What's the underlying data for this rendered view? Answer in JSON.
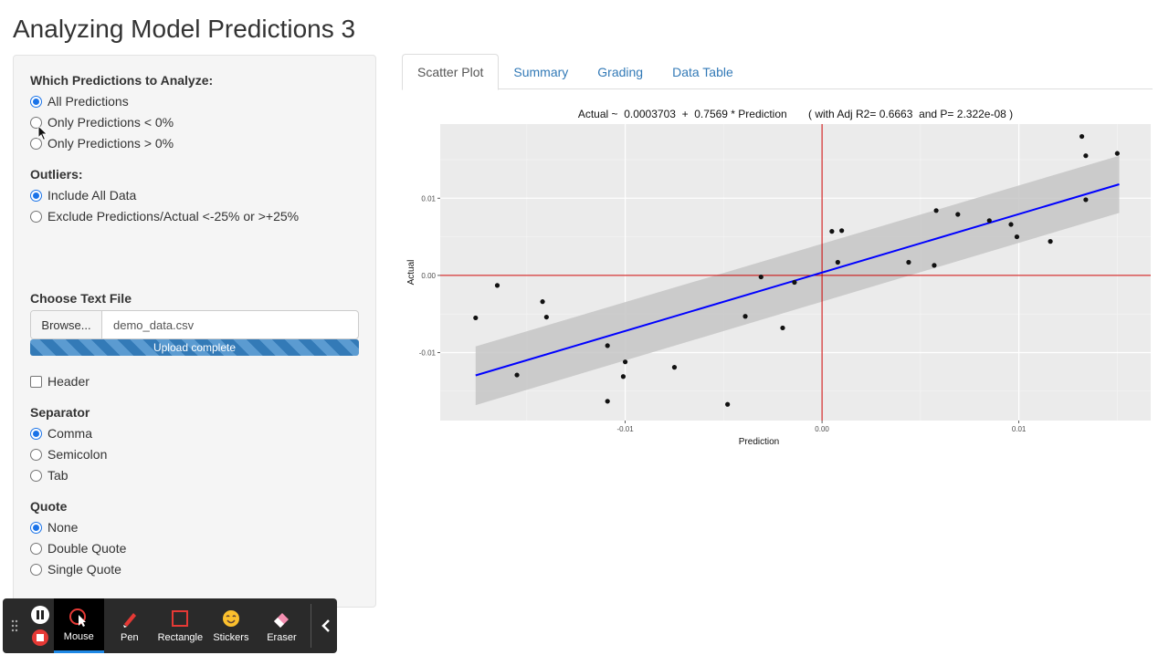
{
  "page": {
    "title": "Analyzing Model Predictions 3"
  },
  "sidebar": {
    "predictions": {
      "label": "Which Predictions to Analyze:",
      "options": [
        "All Predictions",
        "Only Predictions < 0%",
        "Only Predictions > 0%"
      ],
      "selected": "All Predictions"
    },
    "outliers": {
      "label": "Outliers:",
      "options": [
        "Include All Data",
        "Exclude Predictions/Actual <-25% or >+25%"
      ],
      "selected": "Include All Data"
    },
    "file": {
      "label": "Choose Text File",
      "browse_label": "Browse...",
      "file_name": "demo_data.csv",
      "progress_text": "Upload complete",
      "progress_fraction": 1.0
    },
    "header": {
      "label": "Header",
      "checked": false
    },
    "separator": {
      "label": "Separator",
      "options": [
        "Comma",
        "Semicolon",
        "Tab"
      ],
      "selected": "Comma"
    },
    "quote": {
      "label": "Quote",
      "options": [
        "None",
        "Double Quote",
        "Single Quote"
      ],
      "selected": "None"
    }
  },
  "tabs": {
    "items": [
      "Scatter Plot",
      "Summary",
      "Grading",
      "Data Table"
    ],
    "active": "Scatter Plot"
  },
  "chart_data": {
    "type": "scatter",
    "title": "Actual ~  0.0003703  +  0.7569 * Prediction       ( with Adj R2= 0.6663  and P= 2.322e-08 )",
    "xlabel": "Prediction",
    "ylabel": "Actual",
    "xlim": [
      -0.0194,
      0.0167
    ],
    "ylim": [
      -0.0188,
      0.0196
    ],
    "xticks": [
      -0.01,
      0.0,
      0.01
    ],
    "xtick_labels": [
      "-0.01",
      "0.00",
      "0.01"
    ],
    "yticks": [
      -0.01,
      0.0,
      0.01
    ],
    "ytick_labels": [
      "-0.01",
      "0.00",
      "0.01"
    ],
    "grid": true,
    "reference_lines": {
      "x": 0,
      "y": 0,
      "color": "#cc0000"
    },
    "regression": {
      "intercept": 0.0003703,
      "slope": 0.7569,
      "color": "#0000ff"
    },
    "confidence_band": {
      "x": [
        -0.0176,
        0.0151
      ],
      "upper": [
        -0.0092,
        0.0155
      ],
      "lower": [
        -0.0168,
        0.0081
      ],
      "color": "#c6c6c6"
    },
    "points": [
      {
        "x": -0.0176,
        "y": -0.0055
      },
      {
        "x": -0.0165,
        "y": -0.0013
      },
      {
        "x": -0.0155,
        "y": -0.0129
      },
      {
        "x": -0.0142,
        "y": -0.0034
      },
      {
        "x": -0.014,
        "y": -0.0054
      },
      {
        "x": -0.0109,
        "y": -0.0091
      },
      {
        "x": -0.0109,
        "y": -0.0163
      },
      {
        "x": -0.0101,
        "y": -0.0131
      },
      {
        "x": -0.01,
        "y": -0.0112
      },
      {
        "x": -0.0075,
        "y": -0.0119
      },
      {
        "x": -0.0048,
        "y": -0.0167
      },
      {
        "x": -0.0039,
        "y": -0.0053
      },
      {
        "x": -0.0031,
        "y": -0.0002
      },
      {
        "x": -0.002,
        "y": -0.0068
      },
      {
        "x": -0.0014,
        "y": -0.0009
      },
      {
        "x": 0.0005,
        "y": 0.0057
      },
      {
        "x": 0.0008,
        "y": 0.0017
      },
      {
        "x": 0.001,
        "y": 0.0058
      },
      {
        "x": 0.0044,
        "y": 0.0017
      },
      {
        "x": 0.0057,
        "y": 0.0013
      },
      {
        "x": 0.0058,
        "y": 0.0084
      },
      {
        "x": 0.0069,
        "y": 0.0079
      },
      {
        "x": 0.0085,
        "y": 0.0071
      },
      {
        "x": 0.0096,
        "y": 0.0066
      },
      {
        "x": 0.0099,
        "y": 0.005
      },
      {
        "x": 0.0116,
        "y": 0.0044
      },
      {
        "x": 0.0132,
        "y": 0.018
      },
      {
        "x": 0.0134,
        "y": 0.0155
      },
      {
        "x": 0.0134,
        "y": 0.0098
      },
      {
        "x": 0.015,
        "y": 0.0158
      }
    ]
  },
  "toolbar": {
    "tools": [
      {
        "label": "Mouse",
        "icon": "mouse-pointer-icon",
        "active": true
      },
      {
        "label": "Pen",
        "icon": "pen-icon",
        "active": false
      },
      {
        "label": "Rectangle",
        "icon": "rectangle-icon",
        "active": false
      },
      {
        "label": "Stickers",
        "icon": "sticker-icon",
        "active": false
      },
      {
        "label": "Eraser",
        "icon": "eraser-icon",
        "active": false
      }
    ],
    "accent": "#1e88e5",
    "stop_color": "#e53935"
  }
}
